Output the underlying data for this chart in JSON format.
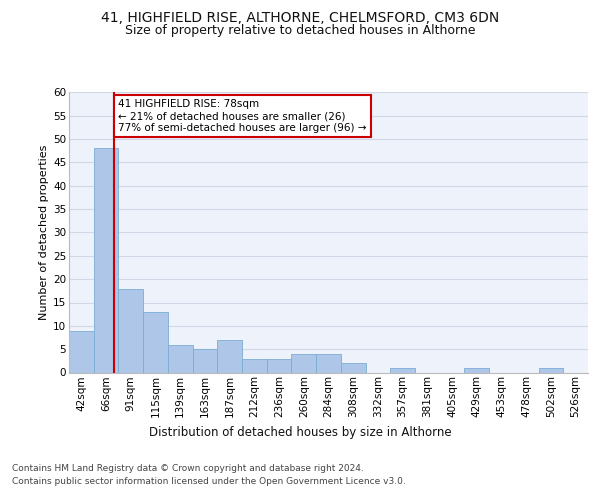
{
  "title1": "41, HIGHFIELD RISE, ALTHORNE, CHELMSFORD, CM3 6DN",
  "title2": "Size of property relative to detached houses in Althorne",
  "xlabel": "Distribution of detached houses by size in Althorne",
  "ylabel": "Number of detached properties",
  "bar_labels": [
    "42sqm",
    "66sqm",
    "91sqm",
    "115sqm",
    "139sqm",
    "163sqm",
    "187sqm",
    "212sqm",
    "236sqm",
    "260sqm",
    "284sqm",
    "308sqm",
    "332sqm",
    "357sqm",
    "381sqm",
    "405sqm",
    "429sqm",
    "453sqm",
    "478sqm",
    "502sqm",
    "526sqm"
  ],
  "bar_values": [
    9,
    48,
    18,
    13,
    6,
    5,
    7,
    3,
    3,
    4,
    4,
    2,
    0,
    1,
    0,
    0,
    1,
    0,
    0,
    1,
    0
  ],
  "bar_color": "#aec6e8",
  "bar_edge_color": "#7aadd4",
  "property_line_x": 1.33,
  "annotation_line1": "41 HIGHFIELD RISE: 78sqm",
  "annotation_line2": "← 21% of detached houses are smaller (26)",
  "annotation_line3": "77% of semi-detached houses are larger (96) →",
  "annotation_box_color": "#ffffff",
  "annotation_box_edge": "#cc0000",
  "red_line_color": "#cc0000",
  "ylim": [
    0,
    60
  ],
  "yticks": [
    0,
    5,
    10,
    15,
    20,
    25,
    30,
    35,
    40,
    45,
    50,
    55,
    60
  ],
  "grid_color": "#d0d8e8",
  "background_color": "#eef2fa",
  "footer_line1": "Contains HM Land Registry data © Crown copyright and database right 2024.",
  "footer_line2": "Contains public sector information licensed under the Open Government Licence v3.0.",
  "title1_fontsize": 10,
  "title2_fontsize": 9,
  "ylabel_fontsize": 8,
  "xlabel_fontsize": 8.5,
  "tick_fontsize": 7.5,
  "annotation_fontsize": 7.5,
  "footer_fontsize": 6.5
}
